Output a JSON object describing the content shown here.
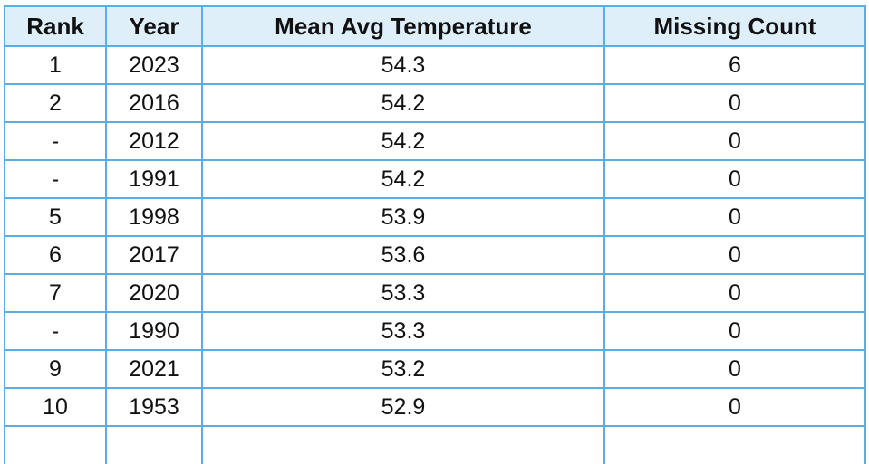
{
  "table": {
    "columns": [
      "Rank",
      "Year",
      "Mean Avg Temperature",
      "Missing Count"
    ],
    "rows": [
      [
        "1",
        "2023",
        "54.3",
        "6"
      ],
      [
        "2",
        "2016",
        "54.2",
        "0"
      ],
      [
        "-",
        "2012",
        "54.2",
        "0"
      ],
      [
        "-",
        "1991",
        "54.2",
        "0"
      ],
      [
        "5",
        "1998",
        "53.9",
        "0"
      ],
      [
        "6",
        "2017",
        "53.6",
        "0"
      ],
      [
        "7",
        "2020",
        "53.3",
        "0"
      ],
      [
        "-",
        "1990",
        "53.3",
        "0"
      ],
      [
        "9",
        "2021",
        "53.2",
        "0"
      ],
      [
        "10",
        "1953",
        "52.9",
        "0"
      ]
    ]
  },
  "colors": {
    "border": "#5aaee0",
    "header_background": "#dfeffa",
    "text": "#111111"
  }
}
